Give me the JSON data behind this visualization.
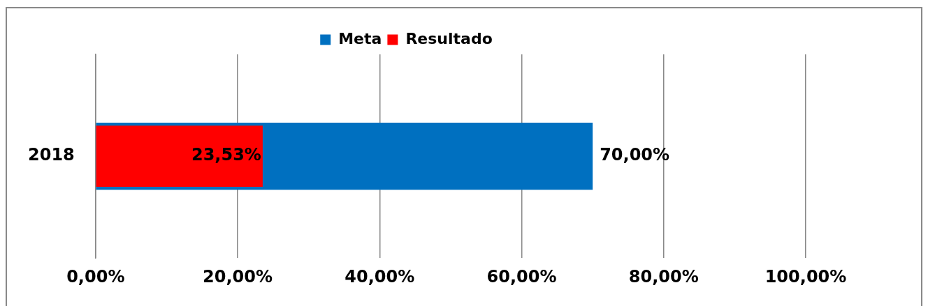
{
  "chart_data": {
    "type": "bar",
    "orientation": "horizontal",
    "categories": [
      "2018"
    ],
    "series": [
      {
        "name": "Meta",
        "color": "#0070c0",
        "values": [
          70
        ],
        "value_labels": [
          "70,00%"
        ]
      },
      {
        "name": "Resultado",
        "color": "#ff0000",
        "values": [
          23.53
        ],
        "value_labels": [
          "23,53%"
        ]
      }
    ],
    "xlim": [
      0,
      100
    ],
    "xticks": [
      {
        "value": 0,
        "label": "0,00%"
      },
      {
        "value": 20,
        "label": "20,00%"
      },
      {
        "value": 40,
        "label": "40,00%"
      },
      {
        "value": 60,
        "label": "60,00%"
      },
      {
        "value": 80,
        "label": "80,00%"
      },
      {
        "value": 100,
        "label": "100,00%"
      }
    ],
    "grid": "x",
    "legend": "top"
  }
}
